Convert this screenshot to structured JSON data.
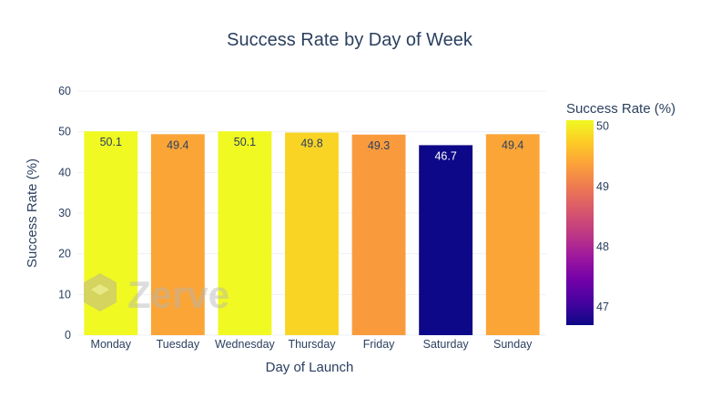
{
  "chart_data": {
    "type": "bar",
    "title": "Success Rate by Day of Week",
    "xlabel": "Day of Launch",
    "ylabel": "Success Rate (%)",
    "categories": [
      "Monday",
      "Tuesday",
      "Wednesday",
      "Thursday",
      "Friday",
      "Saturday",
      "Sunday"
    ],
    "values": [
      50.1,
      49.4,
      50.1,
      49.8,
      49.3,
      46.7,
      49.4
    ],
    "data_labels": [
      "50.1",
      "49.4",
      "50.1",
      "49.8",
      "49.3",
      "46.7",
      "49.4"
    ],
    "ylim": [
      0,
      60
    ],
    "yticks": [
      0,
      10,
      20,
      30,
      40,
      50,
      60
    ],
    "grid": true,
    "colorscale": "plasma",
    "colorbar": {
      "title": "Success Rate (%)",
      "range": [
        46.7,
        50.1
      ],
      "ticks": [
        47,
        48,
        49,
        50
      ]
    }
  },
  "watermark": {
    "text": "Zerve"
  }
}
